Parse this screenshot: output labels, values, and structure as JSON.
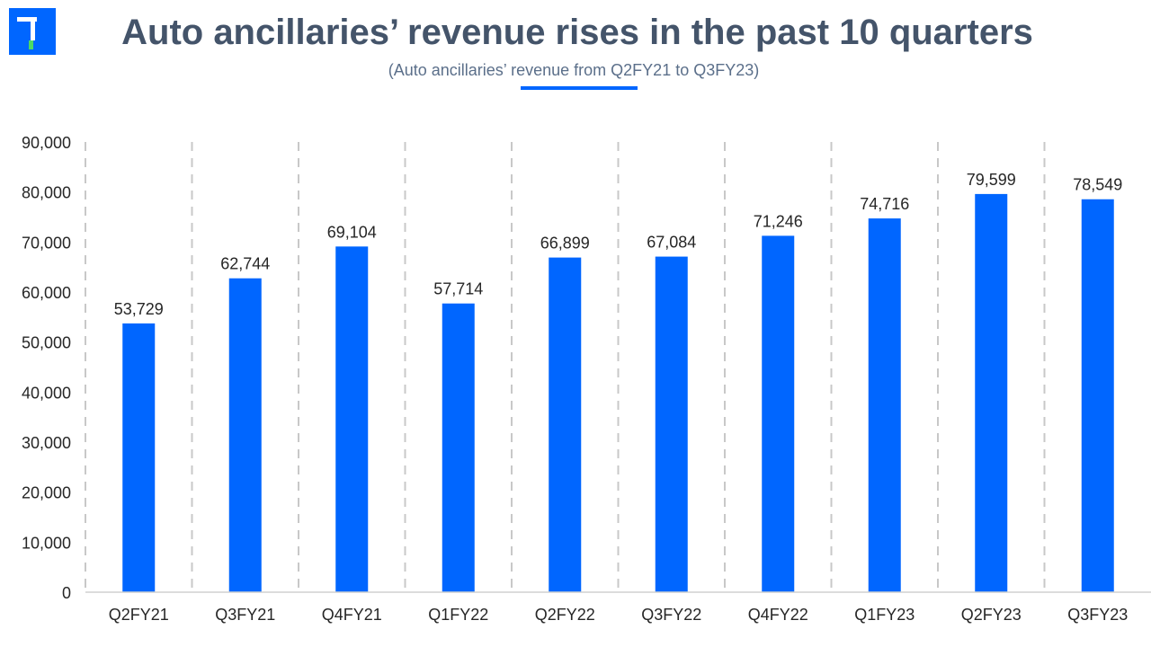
{
  "header": {
    "title": "Auto ancillaries’ revenue rises in the past 10 quarters",
    "subtitle": "(Auto ancillaries’ revenue from Q2FY21 to Q3FY23)"
  },
  "colors": {
    "bar": "#0066ff",
    "title": "#44546a",
    "accent": "#0066ff",
    "logo_bg": "#0066ff",
    "logo_mark": "#4cd964",
    "grid_dash": "#c8c8c8"
  },
  "logo": {
    "icon": "brand-logo-icon"
  },
  "chart_data": {
    "type": "bar",
    "title": "Auto ancillaries’ revenue rises in the past 10 quarters",
    "subtitle": "(Auto ancillaries’ revenue from Q2FY21 to Q3FY23)",
    "xlabel": "",
    "ylabel": "",
    "categories": [
      "Q2FY21",
      "Q3FY21",
      "Q4FY21",
      "Q1FY22",
      "Q2FY22",
      "Q3FY22",
      "Q4FY22",
      "Q1FY23",
      "Q2FY23",
      "Q3FY23"
    ],
    "values": [
      53729,
      62744,
      69104,
      57714,
      66899,
      67084,
      71246,
      74716,
      79599,
      78549
    ],
    "data_labels": [
      "53,729",
      "62,744",
      "69,104",
      "57,714",
      "66,899",
      "67,084",
      "71,246",
      "74,716",
      "79,599",
      "78,549"
    ],
    "ylim": [
      0,
      90000
    ],
    "yticks": [
      0,
      10000,
      20000,
      30000,
      40000,
      50000,
      60000,
      70000,
      80000,
      90000
    ],
    "ytick_labels": [
      "0",
      "10,000",
      "20,000",
      "30,000",
      "40,000",
      "50,000",
      "60,000",
      "70,000",
      "80,000",
      "90,000"
    ],
    "grid": "vertical dashed separators",
    "legend": "none"
  }
}
